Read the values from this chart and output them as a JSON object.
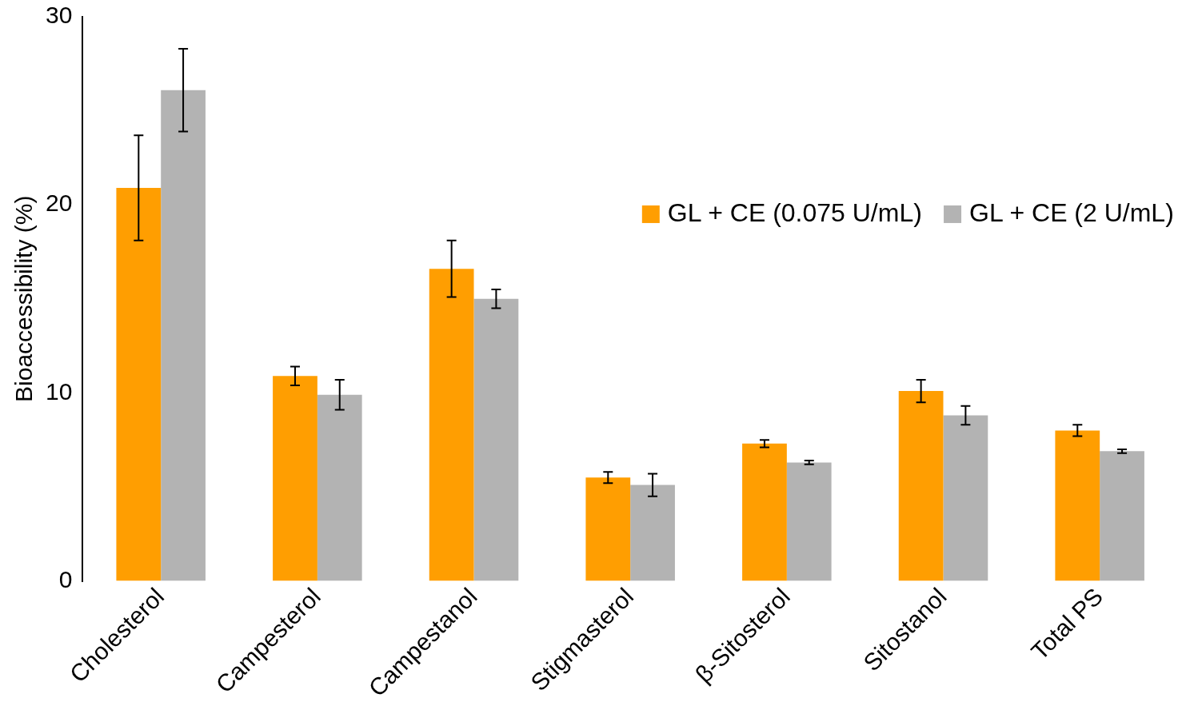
{
  "chart_data": {
    "type": "bar",
    "ylabel": "Bioaccessibility (%)",
    "categories": [
      "Cholesterol",
      "Campesterol",
      "Campestanol",
      "Stigmasterol",
      "β-Sitosterol",
      "Sitostanol",
      "Total PS"
    ],
    "series": [
      {
        "name": "GL + CE (0.075 U/mL)",
        "color": "#ff9e01",
        "values": [
          20.9,
          10.9,
          16.6,
          5.5,
          7.3,
          10.1,
          8.0
        ],
        "errors": [
          2.8,
          0.5,
          1.5,
          0.3,
          0.2,
          0.6,
          0.3
        ]
      },
      {
        "name": "GL + CE (2 U/mL)",
        "color": "#b3b3b3",
        "values": [
          26.1,
          9.9,
          15.0,
          5.1,
          6.3,
          8.8,
          6.9
        ],
        "errors": [
          2.2,
          0.8,
          0.5,
          0.6,
          0.1,
          0.5,
          0.1
        ]
      }
    ],
    "ylim": [
      0,
      30
    ],
    "yticks": [
      0,
      10,
      20,
      30
    ],
    "grid": false,
    "legend": "top right"
  }
}
